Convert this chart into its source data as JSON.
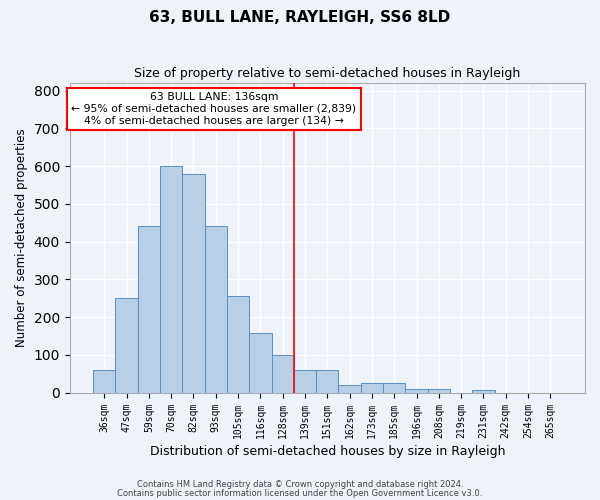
{
  "title": "63, BULL LANE, RAYLEIGH, SS6 8LD",
  "subtitle": "Size of property relative to semi-detached houses in Rayleigh",
  "xlabel": "Distribution of semi-detached houses by size in Rayleigh",
  "ylabel": "Number of semi-detached properties",
  "categories": [
    "36sqm",
    "47sqm",
    "59sqm",
    "70sqm",
    "82sqm",
    "93sqm",
    "105sqm",
    "116sqm",
    "128sqm",
    "139sqm",
    "151sqm",
    "162sqm",
    "173sqm",
    "185sqm",
    "196sqm",
    "208sqm",
    "219sqm",
    "231sqm",
    "242sqm",
    "254sqm",
    "265sqm"
  ],
  "values": [
    60,
    250,
    440,
    600,
    580,
    440,
    255,
    158,
    100,
    60,
    60,
    20,
    25,
    25,
    10,
    10,
    0,
    7,
    0,
    0,
    0
  ],
  "bar_color": "#b8cfe8",
  "bar_edge_color": "#5a8fc0",
  "background_color": "#eef2fa",
  "grid_color": "#ffffff",
  "vline_x_idx": 8.5,
  "annotation_title": "63 BULL LANE: 136sqm",
  "annotation_line1": "← 95% of semi-detached houses are smaller (2,839)",
  "annotation_line2": "4% of semi-detached houses are larger (134) →",
  "footer1": "Contains HM Land Registry data © Crown copyright and database right 2024.",
  "footer2": "Contains public sector information licensed under the Open Government Licence v3.0.",
  "ylim": [
    0,
    820
  ],
  "title_fontsize": 11,
  "subtitle_fontsize": 9,
  "xlabel_fontsize": 9,
  "ylabel_fontsize": 8.5
}
